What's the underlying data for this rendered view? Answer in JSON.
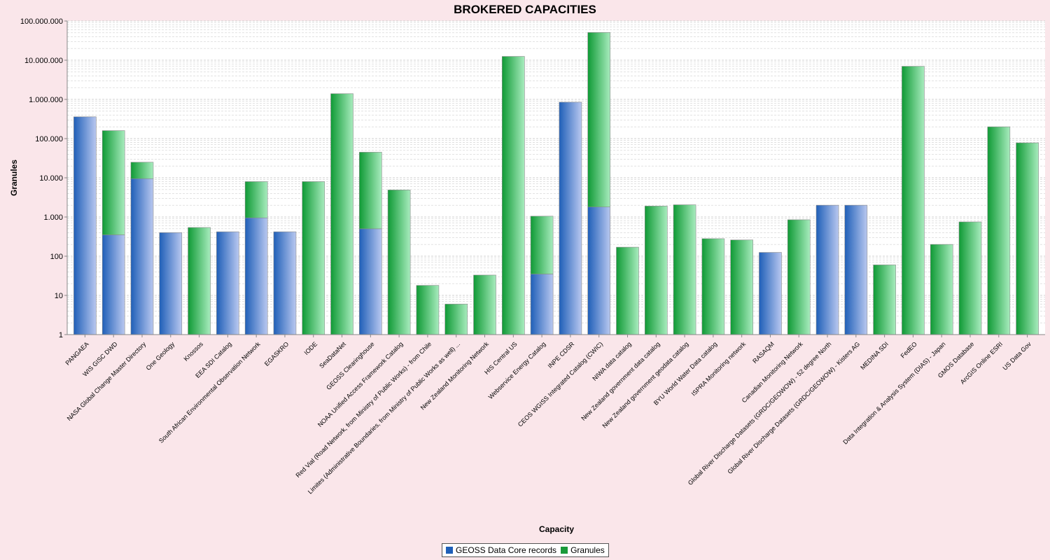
{
  "chart_data": {
    "type": "bar",
    "stacked": true,
    "y_scale": "log",
    "title": "BROKERED CAPACITIES",
    "xlabel": "Capacity",
    "ylabel": "Granules",
    "ylim": [
      1,
      100000000
    ],
    "y_ticks": [
      {
        "value": 1,
        "label": "1"
      },
      {
        "value": 10,
        "label": "10"
      },
      {
        "value": 100,
        "label": "100"
      },
      {
        "value": 1000,
        "label": "1.000"
      },
      {
        "value": 10000,
        "label": "10.000"
      },
      {
        "value": 100000,
        "label": "100.000"
      },
      {
        "value": 1000000,
        "label": "1.000.000"
      },
      {
        "value": 10000000,
        "label": "10.000.000"
      },
      {
        "value": 100000000,
        "label": "100.000.000"
      }
    ],
    "grid": true,
    "legend_position": "bottom",
    "categories": [
      "PANGAEA",
      "WIS GISC DWD",
      "NASA Global Change Master Directory",
      "One Geology",
      "Knossos",
      "EEA SDI Catalog",
      "South African Environmental Observation Network",
      "EGASKRO",
      "IODE",
      "SeaDataNet",
      "GEOSS Clearinghouse",
      "NOAA Unified Access Framework Catalog",
      "Red Vial (Road Network, from Ministry of Public Works) - from Chile",
      "Limites (Administrative Boundaries, from Ministry of Public Works as well) ...",
      "New Zealand Monitoring Network",
      "HIS Central US",
      "Webservice Energy Catalog",
      "INPE CDSR",
      "CEOS WGISS Integrated Catalog (CWIC)",
      "NIWA data catalog",
      "New Zealand government data catalog",
      "New Zealand government geodata catalog",
      "BYU World Water Data catalog",
      "ISPRA Monitoring network",
      "RASAQM",
      "Canadian Monitoring Network",
      "Global River Discharge Datasets (GRDC/GEOWOW) - 52 degree North",
      "Global River Discharge Datasets (GRDC/GEOWOW) - Kisters AG",
      "MEDINA SDI",
      "FedEO",
      "Data Integration & Analysis System (DIAS) - Japan",
      "GMOS Database",
      "ArcGIS Online ESRI",
      "US Data Gov"
    ],
    "series": [
      {
        "name": "GEOSS Data Core records",
        "color": "#1f5fb8",
        "values": [
          360000,
          350,
          9500,
          400,
          0,
          420,
          950,
          420,
          0,
          0,
          500,
          0,
          0,
          0,
          0,
          0,
          35,
          850000,
          1800,
          0,
          0,
          0,
          0,
          0,
          125,
          0,
          2000,
          2000,
          0,
          0,
          0,
          0,
          0,
          0
        ]
      },
      {
        "name": "Granules",
        "color": "#1a9a3a",
        "values": [
          0,
          159650,
          15500,
          0,
          540,
          0,
          7050,
          0,
          8000,
          1400000,
          44500,
          4900,
          18,
          6,
          33,
          12500000,
          1015,
          0,
          50998200,
          170,
          1900,
          2050,
          280,
          260,
          0,
          850,
          0,
          0,
          60,
          7000000,
          200,
          750,
          200000,
          78000
        ]
      }
    ]
  }
}
